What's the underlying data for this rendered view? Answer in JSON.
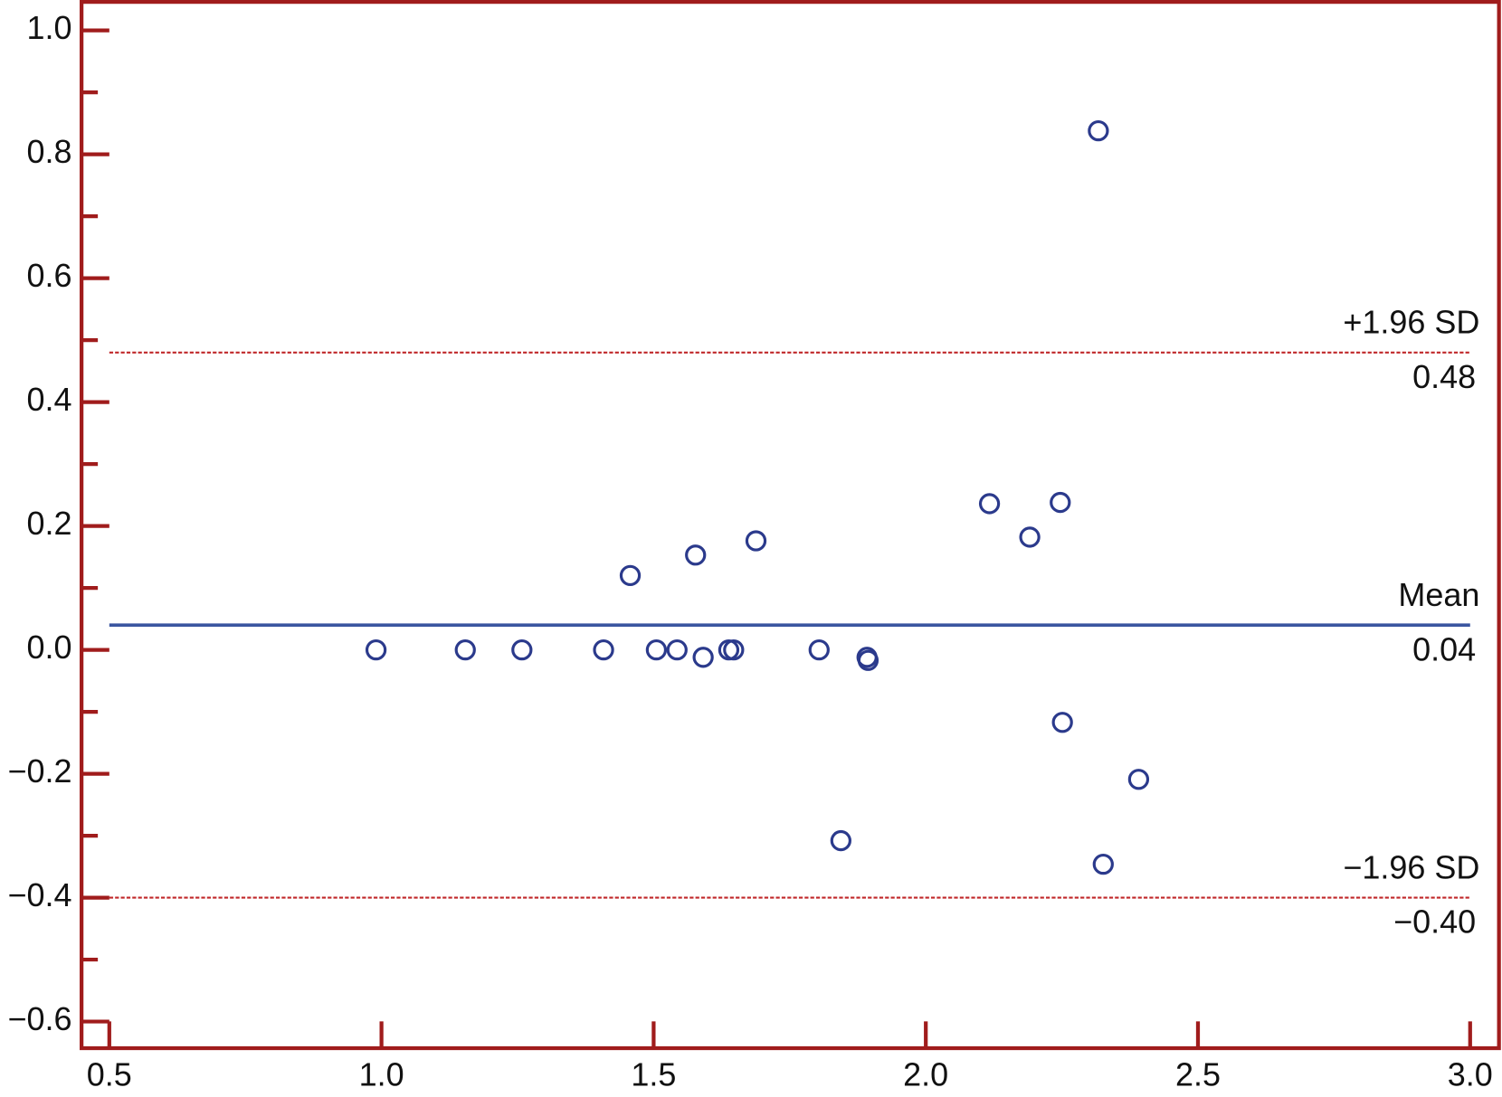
{
  "chart_data": {
    "type": "scatter",
    "x": [
      0.99,
      1.154,
      1.258,
      1.408,
      1.505,
      1.543,
      1.591,
      1.638,
      1.647,
      1.804,
      1.892,
      1.894,
      1.457,
      1.577,
      1.688,
      2.117,
      2.191,
      2.247,
      2.317,
      2.251,
      2.391,
      1.844,
      2.326
    ],
    "series": [
      {
        "color": "#2b3a8c",
        "values": [
          0,
          0,
          0,
          0,
          0,
          0,
          -0.012,
          0,
          0,
          0,
          -0.012,
          -0.017,
          0.12,
          0.153,
          0.176,
          0.236,
          0.182,
          0.238,
          0.838,
          -0.117,
          -0.209,
          -0.308,
          -0.346
        ]
      }
    ],
    "xlim": [
      0.449,
      3.053
    ],
    "ylim": [
      -0.643,
      1.046
    ],
    "xticks": [
      {
        "value": 0.5,
        "label": "0.5"
      },
      {
        "value": 1,
        "label": "1.0"
      },
      {
        "value": 1.5,
        "label": "1.5"
      },
      {
        "value": 2,
        "label": "2.0"
      },
      {
        "value": 2.5,
        "label": "2.5"
      },
      {
        "value": 3,
        "label": "3.0"
      }
    ],
    "yticks": [
      {
        "value": -0.6,
        "label": "−0.6"
      },
      {
        "value": -0.4,
        "label": "−0.4"
      },
      {
        "value": -0.2,
        "label": "−0.2"
      },
      {
        "value": 0,
        "label": "0.0"
      },
      {
        "value": 0.2,
        "label": "0.2"
      },
      {
        "value": 0.4,
        "label": "0.4"
      },
      {
        "value": 0.6,
        "label": "0.6"
      },
      {
        "value": 0.8,
        "label": "0.8"
      },
      {
        "value": 1,
        "label": "1.0"
      }
    ],
    "yminorticks": [
      -0.5,
      -0.3,
      -0.1,
      0.1,
      0.3,
      0.5,
      0.7,
      0.9
    ],
    "reference_lines": [
      {
        "label": "+1.96 SD",
        "value": 0.48,
        "value_label": "0.48",
        "color": "#c0282a",
        "dashed": true
      },
      {
        "label": "Mean",
        "value": 0.04,
        "value_label": "0.04",
        "color": "#3a55a0",
        "dashed": false
      },
      {
        "label": "−1.96 SD",
        "value": -0.4,
        "value_label": "−0.40",
        "color": "#c0282a",
        "dashed": true
      }
    ],
    "frame_color": "#a01c1c"
  }
}
